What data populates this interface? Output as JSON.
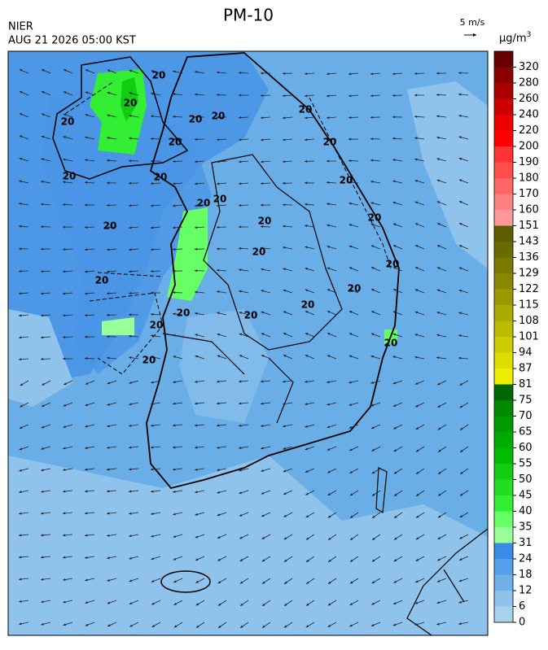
{
  "header": {
    "title": "PM-10",
    "agency": "NIER",
    "timestamp": "AUG 21 2026 05:00 KST",
    "wind_scale": "5 m/s",
    "unit": "μg/m",
    "unit_exponent": "3"
  },
  "colorbar": {
    "ticks": [
      0,
      6,
      12,
      18,
      24,
      31,
      35,
      40,
      45,
      50,
      55,
      60,
      65,
      70,
      75,
      81,
      87,
      94,
      101,
      108,
      115,
      122,
      129,
      136,
      143,
      151,
      160,
      170,
      180,
      190,
      200,
      220,
      240,
      260,
      280,
      320
    ],
    "colors": [
      "#a6d2ea",
      "#8fc3ec",
      "#70b1ea",
      "#55a0ea",
      "#3a8ae8",
      "#99ff99",
      "#66ff66",
      "#33ee33",
      "#22dd22",
      "#11cc11",
      "#00bb00",
      "#00aa00",
      "#009900",
      "#008800",
      "#006600",
      "#eeee00",
      "#dddd00",
      "#cccc00",
      "#bbbb00",
      "#aaaa00",
      "#999900",
      "#888800",
      "#7a7a00",
      "#6a6a00",
      "#5c5c00",
      "#ff9999",
      "#ff8080",
      "#ff6666",
      "#ff4d4d",
      "#ff3333",
      "#ff0000",
      "#ee0000",
      "#cc0000",
      "#aa0000",
      "#880000",
      "#660000"
    ]
  },
  "contour_labels": [
    "20",
    "20",
    "20",
    "20",
    "20",
    "20",
    "20",
    "20",
    "20",
    "20",
    "20",
    "20",
    "20",
    "20",
    "20",
    "20",
    "20",
    "20",
    "20",
    "20",
    "20",
    "20",
    "20",
    "20",
    "20",
    "20"
  ]
}
